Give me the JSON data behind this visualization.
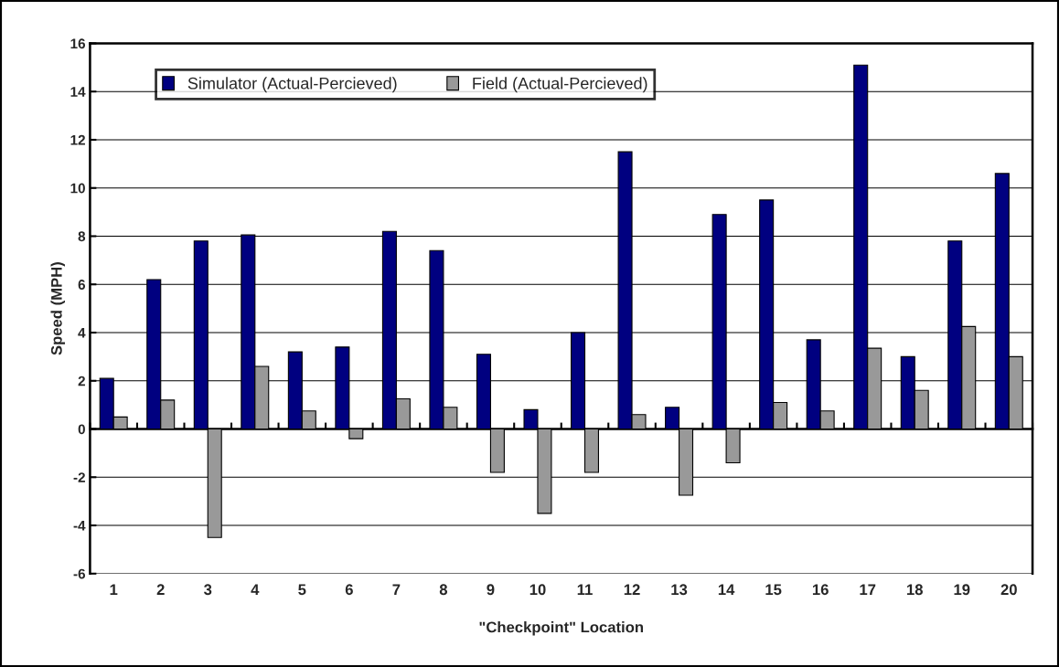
{
  "chart_data": {
    "type": "bar",
    "xlabel": "\"Checkpoint\" Location",
    "ylabel": "Speed (MPH)",
    "categories": [
      "1",
      "2",
      "3",
      "4",
      "5",
      "6",
      "7",
      "8",
      "9",
      "10",
      "11",
      "12",
      "13",
      "14",
      "15",
      "16",
      "17",
      "18",
      "19",
      "20"
    ],
    "series": [
      {
        "name": "Simulator (Actual-Percieved)",
        "color": "#000080",
        "values": [
          2.1,
          6.2,
          7.8,
          8.05,
          3.2,
          3.4,
          8.2,
          7.4,
          3.1,
          0.8,
          4.0,
          11.5,
          0.9,
          8.9,
          9.5,
          3.7,
          15.1,
          3.0,
          7.8,
          10.6
        ]
      },
      {
        "name": "Field (Actual-Percieved)",
        "color": "#999999",
        "values": [
          0.5,
          1.2,
          -4.5,
          2.6,
          0.75,
          -0.4,
          1.25,
          0.9,
          -1.8,
          -3.5,
          -1.8,
          0.6,
          -2.75,
          -1.4,
          1.1,
          0.75,
          3.35,
          1.6,
          4.25,
          3.0
        ]
      }
    ],
    "ylim": [
      -6,
      16
    ],
    "yticks": [
      -6,
      -4,
      -2,
      0,
      2,
      4,
      6,
      8,
      10,
      12,
      14,
      16
    ],
    "grid": "y",
    "legend": "top left"
  }
}
